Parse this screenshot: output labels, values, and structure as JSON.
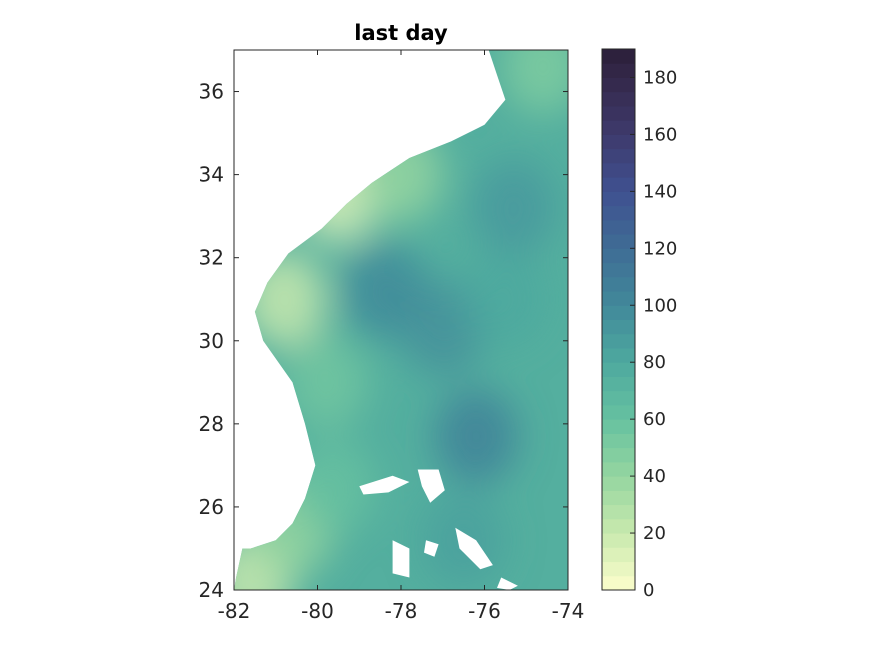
{
  "chart_data": [
    {
      "type": "heatmap",
      "title": "last day",
      "xlabel": "",
      "ylabel": "",
      "xlim": [
        -82,
        -74
      ],
      "ylim": [
        24,
        37
      ],
      "x_ticks": [
        -82,
        -80,
        -78,
        -76,
        -74
      ],
      "x_tick_labels": [
        "-82",
        "-80",
        "-78",
        "-76",
        "-74"
      ],
      "y_ticks": [
        24,
        26,
        28,
        30,
        32,
        34,
        36
      ],
      "y_tick_labels": [
        "24",
        "26",
        "28",
        "30",
        "32",
        "34",
        "36"
      ],
      "grid": false,
      "land_color": "#ffffff",
      "field_regions": [
        {
          "lon": -81.6,
          "lat": 24.2,
          "value": 20
        },
        {
          "lon": -80.6,
          "lat": 25.5,
          "value": 40
        },
        {
          "lon": -79.6,
          "lat": 26.5,
          "value": 60
        },
        {
          "lon": -79.8,
          "lat": 29.0,
          "value": 55
        },
        {
          "lon": -80.8,
          "lat": 31.0,
          "value": 20
        },
        {
          "lon": -79.5,
          "lat": 33.5,
          "value": 15
        },
        {
          "lon": -78.0,
          "lat": 34.0,
          "value": 40
        },
        {
          "lon": -78.4,
          "lat": 31.2,
          "value": 100
        },
        {
          "lon": -77.0,
          "lat": 30.3,
          "value": 95
        },
        {
          "lon": -76.2,
          "lat": 27.7,
          "value": 105
        },
        {
          "lon": -75.3,
          "lat": 33.2,
          "value": 90
        },
        {
          "lon": -74.6,
          "lat": 36.6,
          "value": 50
        },
        {
          "lon": -76.5,
          "lat": 25.2,
          "value": 85
        },
        {
          "lon": -75.5,
          "lat": 31.0,
          "value": 80
        }
      ]
    },
    {
      "type": "colorbar",
      "range": [
        0,
        190
      ],
      "ticks": [
        0,
        20,
        40,
        60,
        80,
        100,
        120,
        140,
        160,
        180
      ],
      "tick_labels": [
        "0",
        "20",
        "40",
        "60",
        "80",
        "100",
        "120",
        "140",
        "160",
        "180"
      ],
      "n_levels": 38,
      "colormap_stops": [
        {
          "value": 0,
          "color": "#fdfecc"
        },
        {
          "value": 20,
          "color": "#c8e9ae"
        },
        {
          "value": 40,
          "color": "#95d5a0"
        },
        {
          "value": 60,
          "color": "#66c1a0"
        },
        {
          "value": 80,
          "color": "#4ea99f"
        },
        {
          "value": 100,
          "color": "#41899a"
        },
        {
          "value": 120,
          "color": "#3f6c95"
        },
        {
          "value": 140,
          "color": "#3f5190"
        },
        {
          "value": 160,
          "color": "#3e3a6c"
        },
        {
          "value": 180,
          "color": "#34284a"
        },
        {
          "value": 190,
          "color": "#2a1f38"
        }
      ]
    }
  ]
}
